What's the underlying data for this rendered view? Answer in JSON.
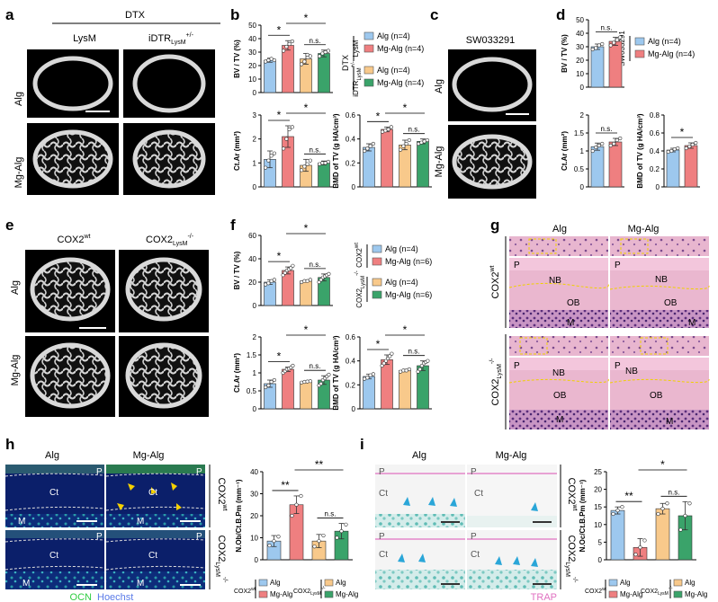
{
  "colors": {
    "alg": "#9dc8ee",
    "mg_alg": "#ef7f80",
    "alg2": "#f8c98b",
    "mg_alg2": "#3aa36a",
    "he_pink": "#d99bbd",
    "trap": "#e070c0",
    "ocn": "#2ecc40",
    "hoechst": "#5b7be8",
    "dashed": "#f0d000"
  },
  "panels": {
    "a": {
      "letter": "a",
      "group": "DTX",
      "col1": "LysM",
      "col2_main": "iDTR",
      "col2_sub": "LysM",
      "col2_sup": "+/-",
      "row1": "Alg",
      "row2": "Mg-Alg"
    },
    "b": {
      "letter": "b",
      "legend_group1": "LysM",
      "legend_group_dtx": "DTX",
      "legend_group2_main": "iDTR",
      "legend_group2_sub": "LysM",
      "legend_group2_sup": "+/-",
      "legend": [
        "Alg (n=4)",
        "Mg-Alg (n=4)",
        "Alg (n=4)",
        "Mg-Alg (n=4)"
      ]
    },
    "c": {
      "letter": "c",
      "title": "SW033291",
      "row1": "Alg",
      "row2": "Mg-Alg"
    },
    "d": {
      "letter": "d",
      "legend_group": "SW033291",
      "legend": [
        "Alg (n=4)",
        "Mg-Alg (n=4)"
      ]
    },
    "e": {
      "letter": "e",
      "col1_main": "COX2",
      "col1_sup": "wt",
      "col2_main": "COX2",
      "col2_sub": "LysM",
      "col2_sup": "-/-",
      "row1": "Alg",
      "row2": "Mg-Alg"
    },
    "f": {
      "letter": "f",
      "legend_group1_main": "COX2",
      "legend_group1_sup": "wt",
      "legend_group2_main": "COX2",
      "legend_group2_sub": "LysM",
      "legend_group2_sup": "-/-",
      "legend": [
        "Alg (n=4)",
        "Mg-Alg (n=6)",
        "Alg (n=4)",
        "Mg-Alg (n=6)"
      ]
    },
    "g": {
      "letter": "g",
      "col1": "Alg",
      "col2": "Mg-Alg",
      "row1_main": "COX2",
      "row1_sup": "wt",
      "row2_main": "COX2",
      "row2_sub": "LysM",
      "row2_sup": "-/-",
      "labels": {
        "p": "P",
        "nb": "NB",
        "ob": "OB",
        "m": "M"
      }
    },
    "h": {
      "letter": "h",
      "col1": "Alg",
      "col2": "Mg-Alg",
      "row1_main": "COX2",
      "row1_sup": "wt",
      "row2_main": "COX2",
      "row2_sub": "LysM",
      "row2_sup": "-/-",
      "labels": {
        "p": "P",
        "ct": "Ct",
        "m": "M"
      },
      "stain1": "OCN",
      "stain2": "Hoechst",
      "legend": [
        "Alg",
        "Mg-Alg",
        "Alg",
        "Mg-Alg"
      ],
      "legend_g1_main": "COX2",
      "legend_g1_sup": "wt",
      "legend_g2_main": "COX2",
      "legend_g2_sub": "LysM",
      "legend_g2_sup": "-/-"
    },
    "i": {
      "letter": "i",
      "col1": "Alg",
      "col2": "Mg-Alg",
      "row1_main": "COX2",
      "row1_sup": "wt",
      "row2_main": "COX2",
      "row2_sub": "LysM",
      "row2_sup": "-/-",
      "labels": {
        "p": "P",
        "ct": "Ct"
      },
      "stain": "TRAP",
      "legend": [
        "Alg",
        "Mg-Alg",
        "Alg",
        "Mg-Alg"
      ],
      "legend_g1_main": "COX2",
      "legend_g1_sup": "wt",
      "legend_g2_main": "COX2",
      "legend_g2_sub": "LysM",
      "legend_g2_sup": "-/-"
    }
  },
  "chart_data": [
    {
      "id": "b1",
      "type": "bar",
      "ylabel": "BV / TV (%)",
      "ylim": [
        0,
        50
      ],
      "yticks": [
        0,
        10,
        20,
        30,
        40,
        50
      ],
      "categories": [
        "Alg",
        "Mg-Alg",
        "Alg",
        "Mg-Alg"
      ],
      "values": [
        24,
        35,
        25,
        29
      ],
      "errors": [
        1.5,
        3.5,
        4,
        2.5
      ],
      "points": [
        [
          23,
          24,
          25,
          24
        ],
        [
          31,
          34,
          36,
          38
        ],
        [
          21,
          23,
          28,
          27
        ],
        [
          27,
          29,
          30,
          31
        ]
      ],
      "annotations": [
        {
          "from": 0,
          "to": 1,
          "text": "*"
        },
        {
          "from": 1,
          "to": 3,
          "text": "*"
        },
        {
          "from": 2,
          "to": 3,
          "text": "n.s."
        }
      ]
    },
    {
      "id": "b2",
      "type": "bar",
      "ylabel": "Ct.Ar (mm²)",
      "ylim": [
        0,
        3
      ],
      "yticks": [
        0,
        1,
        2,
        3
      ],
      "categories": [
        "Alg",
        "Mg-Alg",
        "Alg",
        "Mg-Alg"
      ],
      "values": [
        1.15,
        2.1,
        0.9,
        1.0
      ],
      "errors": [
        0.35,
        0.45,
        0.25,
        0.08
      ],
      "points": [
        [
          0.8,
          1.1,
          1.3,
          1.4
        ],
        [
          1.6,
          2.0,
          2.4,
          2.5
        ],
        [
          0.7,
          0.85,
          0.95,
          1.1
        ],
        [
          0.95,
          1.0,
          1.0,
          1.05
        ]
      ],
      "annotations": [
        {
          "from": 0,
          "to": 1,
          "text": "*"
        },
        {
          "from": 1,
          "to": 3,
          "text": "*"
        },
        {
          "from": 2,
          "to": 3,
          "text": "n.s."
        }
      ]
    },
    {
      "id": "b3",
      "type": "bar",
      "ylabel": "BMD of TV (g HA/cm³)",
      "ylim": [
        0,
        0.6
      ],
      "yticks": [
        0,
        0.2,
        0.4,
        0.6
      ],
      "categories": [
        "Alg",
        "Mg-Alg",
        "Alg",
        "Mg-Alg"
      ],
      "values": [
        0.33,
        0.48,
        0.35,
        0.38
      ],
      "errors": [
        0.03,
        0.02,
        0.04,
        0.02
      ],
      "points": [
        [
          0.3,
          0.32,
          0.34,
          0.36
        ],
        [
          0.46,
          0.47,
          0.48,
          0.5
        ],
        [
          0.31,
          0.34,
          0.36,
          0.39
        ],
        [
          0.36,
          0.37,
          0.38,
          0.39
        ]
      ],
      "annotations": [
        {
          "from": 0,
          "to": 1,
          "text": "*"
        },
        {
          "from": 1,
          "to": 3,
          "text": "*"
        },
        {
          "from": 2,
          "to": 3,
          "text": "n.s."
        }
      ]
    },
    {
      "id": "d1",
      "type": "bar",
      "ylabel": "BV / TV (%)",
      "ylim": [
        0,
        50
      ],
      "yticks": [
        0,
        10,
        20,
        30,
        40,
        50
      ],
      "categories": [
        "Alg",
        "Mg-Alg"
      ],
      "values": [
        30,
        34
      ],
      "errors": [
        2,
        3
      ],
      "points": [
        [
          28,
          29,
          31,
          32
        ],
        [
          31,
          33,
          35,
          37
        ]
      ],
      "annotations": [
        {
          "from": 0,
          "to": 1,
          "text": "n.s."
        }
      ]
    },
    {
      "id": "d2",
      "type": "bar",
      "ylabel": "Ct.Ar (mm²)",
      "ylim": [
        0,
        2
      ],
      "yticks": [
        0,
        0.5,
        1.0,
        1.5,
        2.0
      ],
      "categories": [
        "Alg",
        "Mg-Alg"
      ],
      "values": [
        1.12,
        1.25
      ],
      "errors": [
        0.1,
        0.1
      ],
      "points": [
        [
          1.0,
          1.1,
          1.15,
          1.2
        ],
        [
          1.15,
          1.2,
          1.3,
          1.35
        ]
      ],
      "annotations": [
        {
          "from": 0,
          "to": 1,
          "text": "n.s."
        }
      ]
    },
    {
      "id": "d3",
      "type": "bar",
      "ylabel": "BMD of TV (g HA/cm³)",
      "ylim": [
        0,
        0.8
      ],
      "yticks": [
        0,
        0.2,
        0.4,
        0.6,
        0.8
      ],
      "categories": [
        "Alg",
        "Mg-Alg"
      ],
      "values": [
        0.41,
        0.46
      ],
      "errors": [
        0.02,
        0.03
      ],
      "points": [
        [
          0.39,
          0.4,
          0.42,
          0.43
        ],
        [
          0.43,
          0.45,
          0.47,
          0.49
        ]
      ],
      "annotations": [
        {
          "from": 0,
          "to": 1,
          "text": "*"
        }
      ]
    },
    {
      "id": "f1",
      "type": "bar",
      "ylabel": "BV / TV (%)",
      "ylim": [
        0,
        60
      ],
      "yticks": [
        0,
        20,
        40,
        60
      ],
      "categories": [
        "Alg",
        "Mg-Alg",
        "Alg",
        "Mg-Alg"
      ],
      "values": [
        20,
        30,
        21,
        24
      ],
      "errors": [
        2,
        3,
        1,
        3
      ],
      "points": [
        [
          18,
          19,
          21,
          22
        ],
        [
          26,
          28,
          30,
          31,
          32,
          34
        ],
        [
          20,
          21,
          21,
          22
        ],
        [
          20,
          22,
          24,
          25,
          26,
          27
        ]
      ],
      "annotations": [
        {
          "from": 0,
          "to": 1,
          "text": "*"
        },
        {
          "from": 1,
          "to": 3,
          "text": "*"
        },
        {
          "from": 2,
          "to": 3,
          "text": "n.s."
        }
      ]
    },
    {
      "id": "f2",
      "type": "bar",
      "ylabel": "Ct.Ar (mm²)",
      "ylim": [
        0,
        2
      ],
      "yticks": [
        0,
        0.5,
        1.0,
        1.5,
        2.0
      ],
      "categories": [
        "Alg",
        "Mg-Alg",
        "Alg",
        "Mg-Alg"
      ],
      "values": [
        0.7,
        1.1,
        0.75,
        0.8
      ],
      "errors": [
        0.1,
        0.06,
        0.02,
        0.12
      ],
      "points": [
        [
          0.6,
          0.65,
          0.75,
          0.8
        ],
        [
          1.0,
          1.05,
          1.1,
          1.12,
          1.15,
          1.2
        ],
        [
          0.73,
          0.75,
          0.76,
          0.77
        ],
        [
          0.65,
          0.7,
          0.8,
          0.85,
          0.9,
          0.95
        ]
      ],
      "annotations": [
        {
          "from": 0,
          "to": 1,
          "text": "*"
        },
        {
          "from": 1,
          "to": 3,
          "text": "*"
        },
        {
          "from": 2,
          "to": 3,
          "text": "n.s."
        }
      ]
    },
    {
      "id": "f3",
      "type": "bar",
      "ylabel": "BMD of TV (g HA/cm³)",
      "ylim": [
        0,
        0.6
      ],
      "yticks": [
        0,
        0.2,
        0.4,
        0.6
      ],
      "categories": [
        "Alg",
        "Mg-Alg",
        "Alg",
        "Mg-Alg"
      ],
      "values": [
        0.27,
        0.41,
        0.32,
        0.36
      ],
      "errors": [
        0.02,
        0.04,
        0.01,
        0.04
      ],
      "points": [
        [
          0.25,
          0.26,
          0.28,
          0.29
        ],
        [
          0.36,
          0.38,
          0.4,
          0.42,
          0.44,
          0.46
        ],
        [
          0.31,
          0.32,
          0.32,
          0.33
        ],
        [
          0.31,
          0.33,
          0.36,
          0.38,
          0.39,
          0.4
        ]
      ],
      "annotations": [
        {
          "from": 0,
          "to": 1,
          "text": "*"
        },
        {
          "from": 1,
          "to": 3,
          "text": "*"
        },
        {
          "from": 2,
          "to": 3,
          "text": "n.s."
        }
      ]
    },
    {
      "id": "h1",
      "type": "bar",
      "ylabel": "N.Ob/Ct.B.Pm (mm⁻¹)",
      "ylim": [
        0,
        40
      ],
      "yticks": [
        0,
        10,
        20,
        30,
        40
      ],
      "categories": [
        "Alg",
        "Mg-Alg",
        "Alg",
        "Mg-Alg"
      ],
      "values": [
        8.5,
        25,
        8.5,
        13
      ],
      "errors": [
        2.5,
        4,
        3,
        3.5
      ],
      "points": [
        [
          6.5,
          8.5,
          10.5
        ],
        [
          20,
          25,
          29
        ],
        [
          6,
          8.5,
          11
        ],
        [
          10,
          13,
          16
        ]
      ],
      "annotations": [
        {
          "from": 0,
          "to": 1,
          "text": "**"
        },
        {
          "from": 1,
          "to": 3,
          "text": "**"
        },
        {
          "from": 2,
          "to": 3,
          "text": "n.s."
        }
      ]
    },
    {
      "id": "i1",
      "type": "bar",
      "ylabel": "N.Oc/Ct.B.Pm (mm⁻¹)",
      "ylim": [
        0,
        25
      ],
      "yticks": [
        0,
        5,
        10,
        15,
        20,
        25
      ],
      "categories": [
        "Alg",
        "Mg-Alg",
        "Alg",
        "Mg-Alg"
      ],
      "values": [
        14,
        3.5,
        14.5,
        12.5
      ],
      "errors": [
        1,
        2.5,
        1.5,
        4
      ],
      "points": [
        [
          13,
          14,
          15
        ],
        [
          1.5,
          3.5,
          5.5
        ],
        [
          13,
          14.5,
          16
        ],
        [
          8.5,
          12.5,
          16
        ]
      ],
      "annotations": [
        {
          "from": 0,
          "to": 1,
          "text": "**"
        },
        {
          "from": 1,
          "to": 3,
          "text": "*"
        },
        {
          "from": 2,
          "to": 3,
          "text": "n.s."
        }
      ]
    }
  ]
}
